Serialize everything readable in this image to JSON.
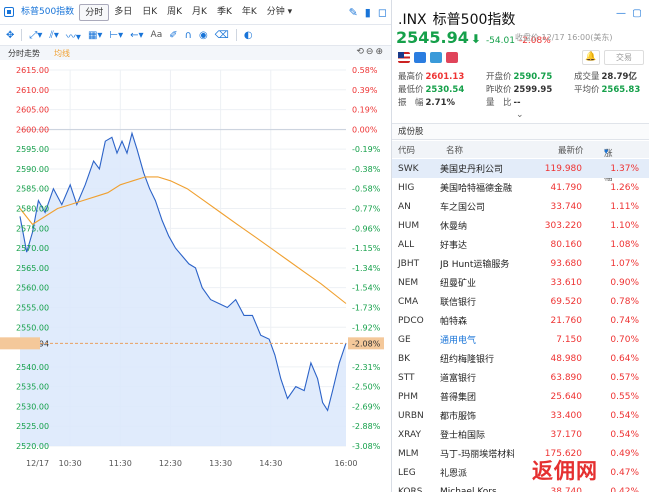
{
  "toolbar": {
    "tabs": [
      "标普500指数",
      "分时",
      "多日",
      "日K",
      "周K",
      "月K",
      "季K",
      "年K",
      "分钟"
    ],
    "active_tab": "分时"
  },
  "chart_header": {
    "label": "分时走势",
    "ma_label": "均线"
  },
  "chart_data": {
    "type": "line",
    "current_price": 2545.94,
    "prev_close": 2599.95,
    "y_ticks": [
      2615.0,
      2610.0,
      2605.0,
      2600.0,
      2595.0,
      2590.0,
      2585.0,
      2580.0,
      2575.0,
      2570.0,
      2565.0,
      2560.0,
      2555.0,
      2550.0,
      2545.94,
      2540.0,
      2535.0,
      2530.0,
      2525.0,
      2520.0
    ],
    "y_tick_labels": [
      "2615.00",
      "2610.00",
      "2605.00",
      "2600.00",
      "2595.00",
      "2590.00",
      "2585.00",
      "2580.00",
      "2575.00",
      "2570.00",
      "2565.00",
      "2560.00",
      "2555.00",
      "2550.00",
      "2545.94",
      "2540.00",
      "2535.00",
      "2530.00",
      "2525.00",
      "2520.00"
    ],
    "pct_labels": [
      "0.58%",
      "0.39%",
      "0.19%",
      "0.00%",
      "-0.19%",
      "-0.38%",
      "-0.58%",
      "-0.77%",
      "-0.96%",
      "-1.15%",
      "-1.34%",
      "-1.54%",
      "-1.73%",
      "-1.92%",
      "-2.08%",
      "-2.31%",
      "-2.50%",
      "-2.69%",
      "-2.88%",
      "-3.08%"
    ],
    "x_ticks": [
      "12/17",
      "10:30",
      "11:30",
      "12:30",
      "13:30",
      "14:30",
      "16:00"
    ],
    "x_tick_minutes": [
      0,
      60,
      120,
      180,
      240,
      300,
      390
    ],
    "price_x": [
      0,
      8,
      15,
      22,
      30,
      40,
      50,
      60,
      68,
      78,
      88,
      95,
      102,
      110,
      116,
      122,
      128,
      134,
      140,
      148,
      155,
      162,
      170,
      178,
      186,
      194,
      202,
      210,
      218,
      228,
      238,
      248,
      258,
      268,
      278,
      288,
      298,
      305,
      312,
      320,
      330,
      340,
      348,
      356,
      362,
      368,
      374,
      382,
      390
    ],
    "price_y": [
      2578,
      2569,
      2574,
      2582,
      2579,
      2585,
      2581,
      2586,
      2581,
      2586,
      2592,
      2590,
      2597,
      2598,
      2594,
      2597,
      2594,
      2599,
      2595,
      2589,
      2585,
      2582,
      2577,
      2573,
      2570,
      2568,
      2566,
      2565,
      2560,
      2557,
      2556,
      2555,
      2557,
      2553,
      2553,
      2548,
      2547,
      2543,
      2537,
      2532,
      2535,
      2534,
      2541,
      2537,
      2531,
      2529,
      2534,
      2541,
      2546
    ],
    "ma_x": [
      0,
      15,
      30,
      45,
      60,
      75,
      90,
      105,
      120,
      135,
      150,
      165,
      180,
      200,
      220,
      240,
      260,
      280,
      300,
      320,
      340,
      360,
      390
    ],
    "ma_y": [
      2580,
      2576,
      2578,
      2580,
      2581,
      2582,
      2583,
      2584,
      2586,
      2587,
      2588,
      2588,
      2587,
      2585,
      2582,
      2579,
      2576,
      2573,
      2570,
      2567,
      2564,
      2561,
      2556
    ]
  },
  "quote": {
    "symbol": ".INX",
    "name": "标普500指数",
    "price": "2545.94",
    "arrow": "⬇",
    "change": "-54.01",
    "change_pct": "-2.08%",
    "status": "收盘价 12/17 16:00(美东)",
    "trade_button": "交易",
    "stats": [
      [
        {
          "k": "最高价",
          "v": "2601.13",
          "c": "red"
        },
        {
          "k": "开盘价",
          "v": "2590.75",
          "c": "green"
        },
        {
          "k": "成交量",
          "v": "28.79亿",
          "c": ""
        }
      ],
      [
        {
          "k": "最低价",
          "v": "2530.54",
          "c": "green"
        },
        {
          "k": "昨收价",
          "v": "2599.95",
          "c": ""
        },
        {
          "k": "平均价",
          "v": "2565.83",
          "c": "green"
        }
      ],
      [
        {
          "k": "振　幅",
          "v": "2.71%",
          "c": ""
        },
        {
          "k": "量　比",
          "v": "--",
          "c": ""
        },
        {
          "k": "",
          "v": "",
          "c": ""
        }
      ]
    ]
  },
  "constituents": {
    "title": "成份股",
    "headers": [
      "代码",
      "名称",
      "最新价",
      "涨跌幅"
    ],
    "rows": [
      {
        "code": "SWK",
        "name": "美国史丹利公司",
        "price": "119.980",
        "pct": "1.37%"
      },
      {
        "code": "HIG",
        "name": "美国哈特福德金融",
        "price": "41.790",
        "pct": "1.26%"
      },
      {
        "code": "AN",
        "name": "车之国公司",
        "price": "33.740",
        "pct": "1.11%"
      },
      {
        "code": "HUM",
        "name": "休曼纳",
        "price": "303.220",
        "pct": "1.10%"
      },
      {
        "code": "ALL",
        "name": "好事达",
        "price": "80.160",
        "pct": "1.08%"
      },
      {
        "code": "JBHT",
        "name": "JB Hunt运输服务",
        "price": "93.680",
        "pct": "1.07%"
      },
      {
        "code": "NEM",
        "name": "纽曼矿业",
        "price": "33.610",
        "pct": "0.90%"
      },
      {
        "code": "CMA",
        "name": "联信银行",
        "price": "69.520",
        "pct": "0.78%"
      },
      {
        "code": "PDCO",
        "name": "帕特森",
        "price": "21.760",
        "pct": "0.74%"
      },
      {
        "code": "GE",
        "name": "通用电气",
        "price": "7.150",
        "pct": "0.70%"
      },
      {
        "code": "BK",
        "name": "纽约梅隆银行",
        "price": "48.980",
        "pct": "0.64%"
      },
      {
        "code": "STT",
        "name": "道富银行",
        "price": "63.890",
        "pct": "0.57%"
      },
      {
        "code": "PHM",
        "name": "普得集团",
        "price": "25.640",
        "pct": "0.55%"
      },
      {
        "code": "URBN",
        "name": "都市服饰",
        "price": "33.400",
        "pct": "0.54%"
      },
      {
        "code": "XRAY",
        "name": "登士柏国际",
        "price": "37.170",
        "pct": "0.54%"
      },
      {
        "code": "MLM",
        "name": "马丁-玛丽埃塔材料",
        "price": "175.620",
        "pct": "0.49%"
      },
      {
        "code": "LEG",
        "name": "礼恩派",
        "price": "",
        "pct": "0.47%"
      },
      {
        "code": "KORS",
        "name": "Michael Kors",
        "price": "38.740",
        "pct": "0.42%"
      }
    ]
  },
  "watermark": "返佣网"
}
